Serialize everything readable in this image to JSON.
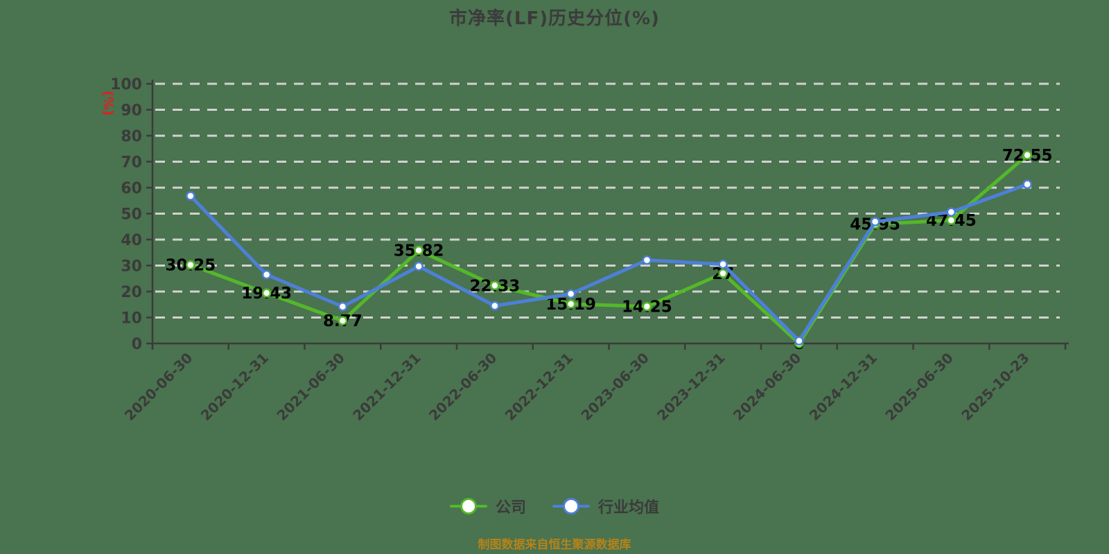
{
  "title": "市净率(LF)历史分位(%)",
  "footer": "制图数据来自恒生聚源数据库",
  "colors": {
    "background": "#4A734F",
    "title_text": "#3B3B3B",
    "axis": "#3B3B3B",
    "grid": "#D2D2D2",
    "label": "#000000",
    "ylabel_red": "#E02020",
    "footer_gold": "#B5831A",
    "company_green": "#54B82A",
    "industry_blue": "#4D80D8"
  },
  "legend": [
    {
      "id": "company",
      "label": "公司",
      "color": "#54B82A"
    },
    {
      "id": "industry",
      "label": "行业均值",
      "color": "#4D80D8"
    }
  ],
  "chart_data": {
    "type": "line",
    "title": "市净率(LF)历史分位(%)",
    "xlabel": "",
    "ylabel": "(%)",
    "ylim": [
      0,
      100
    ],
    "ytick_step": 10,
    "grid": true,
    "grid_style": "dashed",
    "legend_position": "bottom",
    "categories": [
      "2020-06-30",
      "2020-12-31",
      "2021-06-30",
      "2021-12-31",
      "2022-06-30",
      "2022-12-31",
      "2023-06-30",
      "2023-12-31",
      "2024-06-30",
      "2024-12-31",
      "2025-06-30",
      "2025-10-23"
    ],
    "series": [
      {
        "id": "company",
        "name": "公司",
        "color": "#54B82A",
        "show_labels": true,
        "values": [
          30.25,
          19.43,
          8.77,
          35.82,
          22.33,
          15.19,
          14.25,
          27,
          0,
          45.95,
          47.45,
          72.55
        ]
      },
      {
        "id": "industry",
        "name": "行业均值",
        "color": "#4D80D8",
        "show_labels": false,
        "values": [
          56.8,
          26.5,
          14.2,
          29.7,
          14.5,
          19.1,
          32.1,
          30.5,
          1,
          46.9,
          50.6,
          61.3
        ]
      }
    ]
  }
}
